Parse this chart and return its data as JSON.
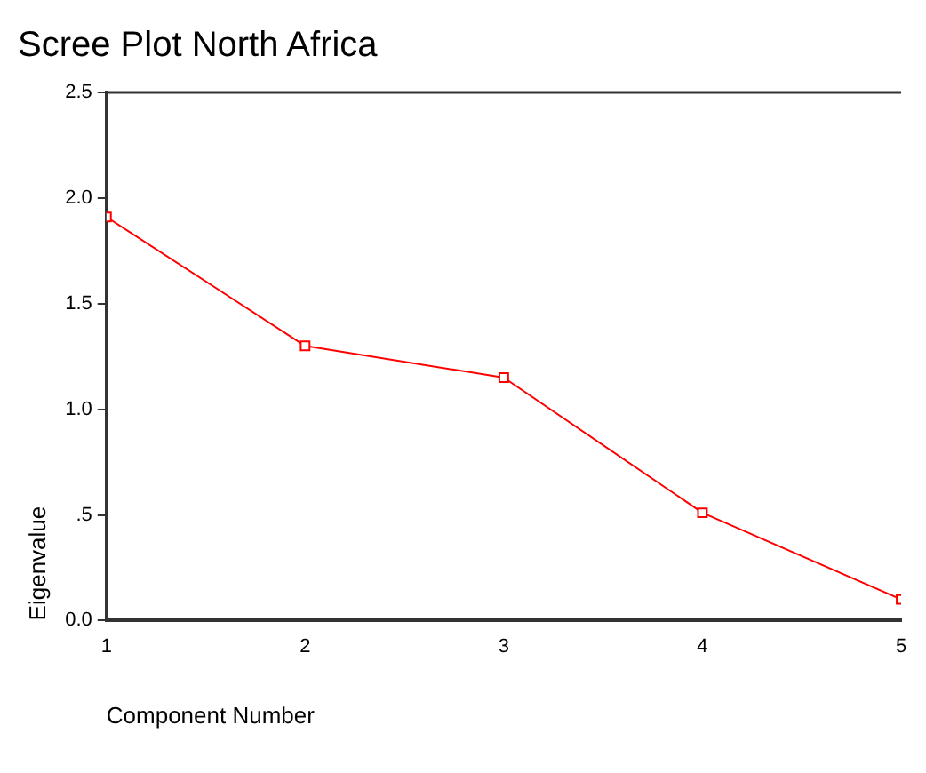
{
  "chart_data": {
    "type": "line",
    "title": "Scree Plot North Africa",
    "xlabel": "Component Number",
    "ylabel": "Eigenvalue",
    "x": [
      1,
      2,
      3,
      4,
      5
    ],
    "series": [
      {
        "color": "#ff0000",
        "values": [
          1.91,
          1.3,
          1.15,
          0.51,
          0.1
        ]
      }
    ],
    "xlim": [
      1,
      5
    ],
    "xticks": [
      1,
      2,
      3,
      4,
      5
    ],
    "ylim": [
      0,
      2.5
    ],
    "yticks": [
      {
        "value": 0,
        "label": "0.0"
      },
      {
        "value": 0.5,
        "label": ".5"
      },
      {
        "value": 1,
        "label": "1.0"
      },
      {
        "value": 1.5,
        "label": "1.5"
      },
      {
        "value": 2,
        "label": "2.0"
      },
      {
        "value": 2.5,
        "label": "2.5"
      }
    ],
    "grid": false,
    "legend": false,
    "marker": "square",
    "line_style": "solid"
  }
}
